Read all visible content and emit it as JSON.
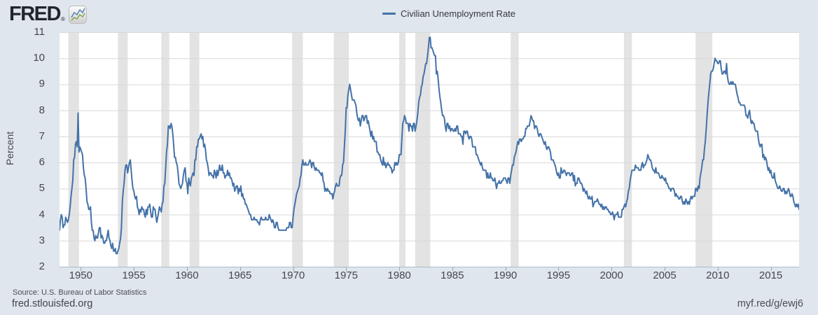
{
  "header": {
    "logo_text": "FRED",
    "registered_mark": "®"
  },
  "legend": {
    "label": "Civilian Unemployment Rate",
    "line_color": "#4472a8"
  },
  "footer": {
    "source": "Source: U.S. Bureau of Labor Statistics",
    "site": "fred.stlouisfed.org",
    "short_url": "myf.red/g/ewj6"
  },
  "colors": {
    "background": "#dfe6ed",
    "plot_background": "#ffffff",
    "line": "#4472a8",
    "gridline": "#d8d8d8",
    "recession_band": "#e3e3e3",
    "axis_line": "#a9bbca",
    "tick_text": "#45484c"
  },
  "chart_data": {
    "type": "line",
    "title": "Civilian Unemployment Rate",
    "xlabel": "",
    "ylabel": "Percent",
    "ylim": [
      2,
      11
    ],
    "xlim": [
      1948.0,
      2017.667
    ],
    "yticks": [
      2,
      3,
      4,
      5,
      6,
      7,
      8,
      9,
      10,
      11
    ],
    "xticks": [
      1950,
      1955,
      1960,
      1965,
      1970,
      1975,
      1980,
      1985,
      1990,
      1995,
      2000,
      2005,
      2010,
      2015
    ],
    "grid": true,
    "legend_position": "top",
    "frequency": "monthly",
    "x_start": {
      "year": 1948,
      "month": 1
    },
    "x_end": {
      "year": 2017,
      "month": 9
    },
    "recession_bands": [
      [
        1948.833,
        1949.833
      ],
      [
        1953.5,
        1954.417
      ],
      [
        1957.583,
        1958.333
      ],
      [
        1960.25,
        1961.167
      ],
      [
        1969.917,
        1970.917
      ],
      [
        1973.833,
        1975.25
      ],
      [
        1980.0,
        1980.583
      ],
      [
        1981.5,
        1982.917
      ],
      [
        1990.5,
        1991.25
      ],
      [
        2001.167,
        2001.917
      ],
      [
        2007.917,
        2009.5
      ]
    ],
    "series": [
      {
        "name": "Civilian Unemployment Rate",
        "color": "#4472a8",
        "values": [
          3.4,
          3.8,
          4.0,
          3.9,
          3.5,
          3.6,
          3.6,
          3.9,
          3.8,
          3.7,
          3.8,
          4.0,
          4.3,
          4.7,
          5.0,
          5.3,
          6.1,
          6.2,
          6.7,
          6.8,
          6.6,
          7.9,
          6.4,
          6.6,
          6.5,
          6.4,
          6.3,
          5.8,
          5.5,
          5.4,
          5.0,
          4.5,
          4.4,
          4.2,
          4.2,
          4.3,
          3.7,
          3.4,
          3.4,
          3.1,
          3.0,
          3.2,
          3.1,
          3.1,
          3.3,
          3.5,
          3.5,
          3.1,
          3.2,
          3.1,
          2.9,
          2.9,
          3.0,
          3.0,
          3.2,
          3.4,
          3.1,
          3.0,
          2.8,
          2.7,
          2.9,
          2.6,
          2.6,
          2.7,
          2.5,
          2.5,
          2.6,
          2.7,
          2.9,
          3.1,
          3.5,
          4.5,
          4.9,
          5.2,
          5.7,
          5.9,
          5.9,
          5.6,
          5.8,
          6.0,
          6.1,
          5.7,
          5.3,
          5.0,
          4.9,
          4.7,
          4.6,
          4.7,
          4.3,
          4.2,
          4.0,
          4.2,
          4.1,
          4.3,
          4.2,
          4.2,
          4.0,
          3.9,
          4.2,
          4.0,
          4.3,
          4.3,
          4.4,
          4.1,
          3.9,
          3.9,
          4.3,
          4.2,
          4.2,
          3.9,
          3.7,
          3.9,
          4.1,
          4.3,
          4.2,
          4.1,
          4.4,
          4.5,
          5.1,
          5.2,
          5.8,
          6.4,
          6.7,
          7.4,
          7.4,
          7.3,
          7.5,
          7.4,
          7.1,
          6.7,
          6.2,
          6.2,
          6.0,
          5.9,
          5.6,
          5.2,
          5.1,
          5.0,
          5.1,
          5.2,
          5.5,
          5.7,
          5.8,
          5.3,
          5.2,
          4.8,
          5.4,
          5.2,
          5.1,
          5.4,
          5.5,
          5.6,
          5.5,
          6.1,
          6.1,
          6.6,
          6.6,
          6.9,
          6.9,
          7.0,
          7.1,
          6.9,
          7.0,
          6.6,
          6.7,
          6.5,
          6.1,
          6.0,
          5.8,
          5.5,
          5.6,
          5.6,
          5.5,
          5.5,
          5.4,
          5.7,
          5.6,
          5.4,
          5.7,
          5.5,
          5.7,
          5.9,
          5.7,
          5.7,
          5.9,
          5.6,
          5.6,
          5.4,
          5.5,
          5.5,
          5.7,
          5.5,
          5.6,
          5.4,
          5.4,
          5.3,
          5.1,
          5.2,
          4.9,
          5.0,
          5.1,
          5.1,
          4.8,
          5.0,
          4.9,
          5.1,
          4.7,
          4.8,
          4.6,
          4.6,
          4.4,
          4.4,
          4.3,
          4.2,
          4.1,
          4.0,
          4.0,
          3.8,
          3.8,
          3.8,
          3.9,
          3.8,
          3.8,
          3.8,
          3.7,
          3.7,
          3.6,
          3.8,
          3.9,
          3.8,
          3.8,
          3.8,
          3.8,
          3.9,
          3.8,
          3.8,
          3.8,
          4.0,
          3.9,
          3.8,
          3.7,
          3.8,
          3.7,
          3.5,
          3.5,
          3.7,
          3.7,
          3.5,
          3.4,
          3.4,
          3.4,
          3.4,
          3.4,
          3.4,
          3.4,
          3.4,
          3.4,
          3.5,
          3.5,
          3.5,
          3.7,
          3.7,
          3.5,
          3.5,
          3.9,
          4.2,
          4.4,
          4.6,
          4.8,
          4.9,
          5.0,
          5.1,
          5.4,
          5.5,
          5.9,
          6.1,
          5.9,
          5.9,
          6.0,
          5.9,
          5.9,
          5.9,
          6.0,
          6.1,
          6.0,
          5.8,
          6.0,
          6.0,
          5.8,
          5.7,
          5.8,
          5.7,
          5.7,
          5.7,
          5.6,
          5.6,
          5.5,
          5.6,
          5.3,
          5.2,
          4.9,
          5.0,
          4.9,
          5.0,
          4.9,
          4.9,
          4.8,
          4.8,
          4.8,
          4.6,
          4.8,
          4.9,
          5.1,
          5.2,
          5.1,
          5.1,
          5.1,
          5.4,
          5.5,
          5.5,
          5.9,
          6.0,
          6.6,
          7.2,
          8.1,
          8.1,
          8.6,
          8.8,
          9.0,
          8.8,
          8.6,
          8.4,
          8.4,
          8.4,
          8.3,
          8.2,
          7.9,
          7.7,
          7.6,
          7.7,
          7.4,
          7.6,
          7.8,
          7.8,
          7.6,
          7.7,
          7.8,
          7.8,
          7.5,
          7.6,
          7.4,
          7.2,
          7.0,
          7.2,
          6.9,
          7.0,
          6.8,
          6.8,
          6.8,
          6.4,
          6.4,
          6.3,
          6.3,
          6.1,
          6.0,
          5.9,
          6.2,
          5.9,
          6.0,
          5.8,
          5.9,
          6.0,
          5.9,
          5.9,
          5.8,
          5.8,
          5.6,
          5.7,
          5.7,
          6.0,
          5.9,
          6.0,
          5.9,
          6.0,
          6.3,
          6.3,
          6.3,
          6.9,
          7.5,
          7.6,
          7.8,
          7.7,
          7.5,
          7.5,
          7.5,
          7.2,
          7.5,
          7.4,
          7.4,
          7.2,
          7.5,
          7.5,
          7.2,
          7.4,
          7.6,
          7.9,
          8.3,
          8.5,
          8.6,
          8.9,
          9.0,
          9.3,
          9.4,
          9.6,
          9.8,
          9.8,
          10.1,
          10.4,
          10.8,
          10.8,
          10.4,
          10.4,
          10.3,
          10.2,
          10.1,
          10.1,
          9.4,
          9.5,
          9.2,
          8.8,
          8.5,
          8.3,
          8.0,
          7.8,
          7.8,
          7.7,
          7.4,
          7.2,
          7.5,
          7.5,
          7.3,
          7.4,
          7.2,
          7.3,
          7.3,
          7.2,
          7.2,
          7.3,
          7.2,
          7.4,
          7.4,
          7.1,
          7.1,
          7.1,
          7.0,
          7.0,
          6.7,
          7.2,
          7.2,
          7.1,
          7.2,
          7.2,
          7.0,
          6.9,
          7.0,
          7.0,
          6.9,
          6.6,
          6.6,
          6.6,
          6.6,
          6.3,
          6.3,
          6.2,
          6.1,
          6.0,
          5.9,
          6.0,
          5.8,
          5.7,
          5.7,
          5.7,
          5.7,
          5.4,
          5.6,
          5.4,
          5.4,
          5.6,
          5.4,
          5.4,
          5.3,
          5.3,
          5.4,
          5.2,
          5.0,
          5.2,
          5.2,
          5.3,
          5.2,
          5.2,
          5.3,
          5.3,
          5.4,
          5.4,
          5.4,
          5.3,
          5.2,
          5.4,
          5.4,
          5.2,
          5.5,
          5.7,
          5.9,
          5.9,
          6.2,
          6.3,
          6.4,
          6.6,
          6.8,
          6.7,
          6.9,
          6.9,
          6.8,
          6.9,
          6.9,
          7.0,
          7.0,
          7.3,
          7.3,
          7.4,
          7.4,
          7.4,
          7.6,
          7.8,
          7.7,
          7.6,
          7.6,
          7.3,
          7.4,
          7.4,
          7.3,
          7.1,
          7.0,
          7.1,
          7.1,
          7.0,
          6.9,
          6.8,
          6.7,
          6.8,
          6.6,
          6.5,
          6.6,
          6.6,
          6.5,
          6.4,
          6.1,
          6.1,
          6.1,
          6.0,
          5.9,
          5.8,
          5.6,
          5.5,
          5.6,
          5.4,
          5.4,
          5.8,
          5.6,
          5.6,
          5.7,
          5.7,
          5.6,
          5.5,
          5.6,
          5.6,
          5.6,
          5.5,
          5.5,
          5.6,
          5.6,
          5.3,
          5.5,
          5.1,
          5.2,
          5.2,
          5.4,
          5.4,
          5.3,
          5.2,
          5.2,
          5.1,
          4.9,
          5.0,
          4.9,
          4.8,
          4.9,
          4.7,
          4.6,
          4.7,
          4.6,
          4.6,
          4.7,
          4.3,
          4.4,
          4.5,
          4.5,
          4.5,
          4.6,
          4.5,
          4.4,
          4.4,
          4.3,
          4.4,
          4.2,
          4.3,
          4.2,
          4.3,
          4.3,
          4.2,
          4.2,
          4.1,
          4.1,
          4.0,
          4.0,
          4.1,
          4.0,
          3.8,
          4.0,
          4.0,
          4.0,
          4.1,
          3.9,
          3.9,
          3.9,
          3.9,
          4.2,
          4.2,
          4.3,
          4.4,
          4.3,
          4.5,
          4.6,
          4.9,
          5.0,
          5.3,
          5.5,
          5.7,
          5.7,
          5.7,
          5.7,
          5.9,
          5.8,
          5.8,
          5.8,
          5.7,
          5.7,
          5.7,
          5.9,
          6.0,
          5.8,
          5.9,
          5.9,
          6.0,
          6.1,
          6.3,
          6.2,
          6.1,
          6.1,
          6.0,
          5.8,
          5.7,
          5.7,
          5.6,
          5.8,
          5.6,
          5.6,
          5.6,
          5.5,
          5.4,
          5.4,
          5.5,
          5.4,
          5.4,
          5.3,
          5.4,
          5.2,
          5.2,
          5.1,
          5.0,
          5.0,
          4.9,
          5.0,
          5.0,
          5.0,
          4.9,
          4.7,
          4.8,
          4.7,
          4.7,
          4.6,
          4.6,
          4.7,
          4.7,
          4.5,
          4.4,
          4.5,
          4.4,
          4.6,
          4.5,
          4.4,
          4.5,
          4.4,
          4.6,
          4.7,
          4.6,
          4.7,
          4.7,
          4.7,
          5.0,
          5.0,
          4.9,
          5.1,
          5.0,
          5.4,
          5.6,
          5.8,
          6.1,
          6.1,
          6.5,
          6.8,
          7.3,
          7.8,
          8.3,
          8.7,
          9.0,
          9.4,
          9.5,
          9.5,
          9.6,
          9.8,
          10.0,
          9.9,
          9.9,
          9.8,
          9.8,
          9.9,
          9.9,
          9.6,
          9.4,
          9.4,
          9.5,
          9.5,
          9.4,
          9.8,
          9.3,
          9.1,
          9.0,
          9.0,
          9.1,
          9.0,
          9.1,
          9.0,
          9.0,
          9.0,
          8.8,
          8.6,
          8.5,
          8.3,
          8.3,
          8.2,
          8.2,
          8.2,
          8.2,
          8.2,
          8.1,
          7.8,
          7.8,
          7.7,
          7.9,
          8.0,
          7.7,
          7.5,
          7.6,
          7.5,
          7.5,
          7.3,
          7.2,
          7.2,
          7.2,
          6.9,
          6.7,
          6.6,
          6.7,
          6.7,
          6.2,
          6.3,
          6.1,
          6.2,
          6.1,
          5.9,
          5.7,
          5.8,
          5.6,
          5.7,
          5.5,
          5.4,
          5.4,
          5.6,
          5.3,
          5.2,
          5.1,
          5.0,
          5.0,
          5.1,
          5.0,
          4.9,
          4.9,
          5.0,
          5.0,
          4.8,
          4.9,
          4.8,
          4.9,
          5.0,
          4.9,
          4.7,
          4.7,
          4.8,
          4.7,
          4.5,
          4.4,
          4.3,
          4.4,
          4.3,
          4.4,
          4.2
        ]
      }
    ]
  }
}
